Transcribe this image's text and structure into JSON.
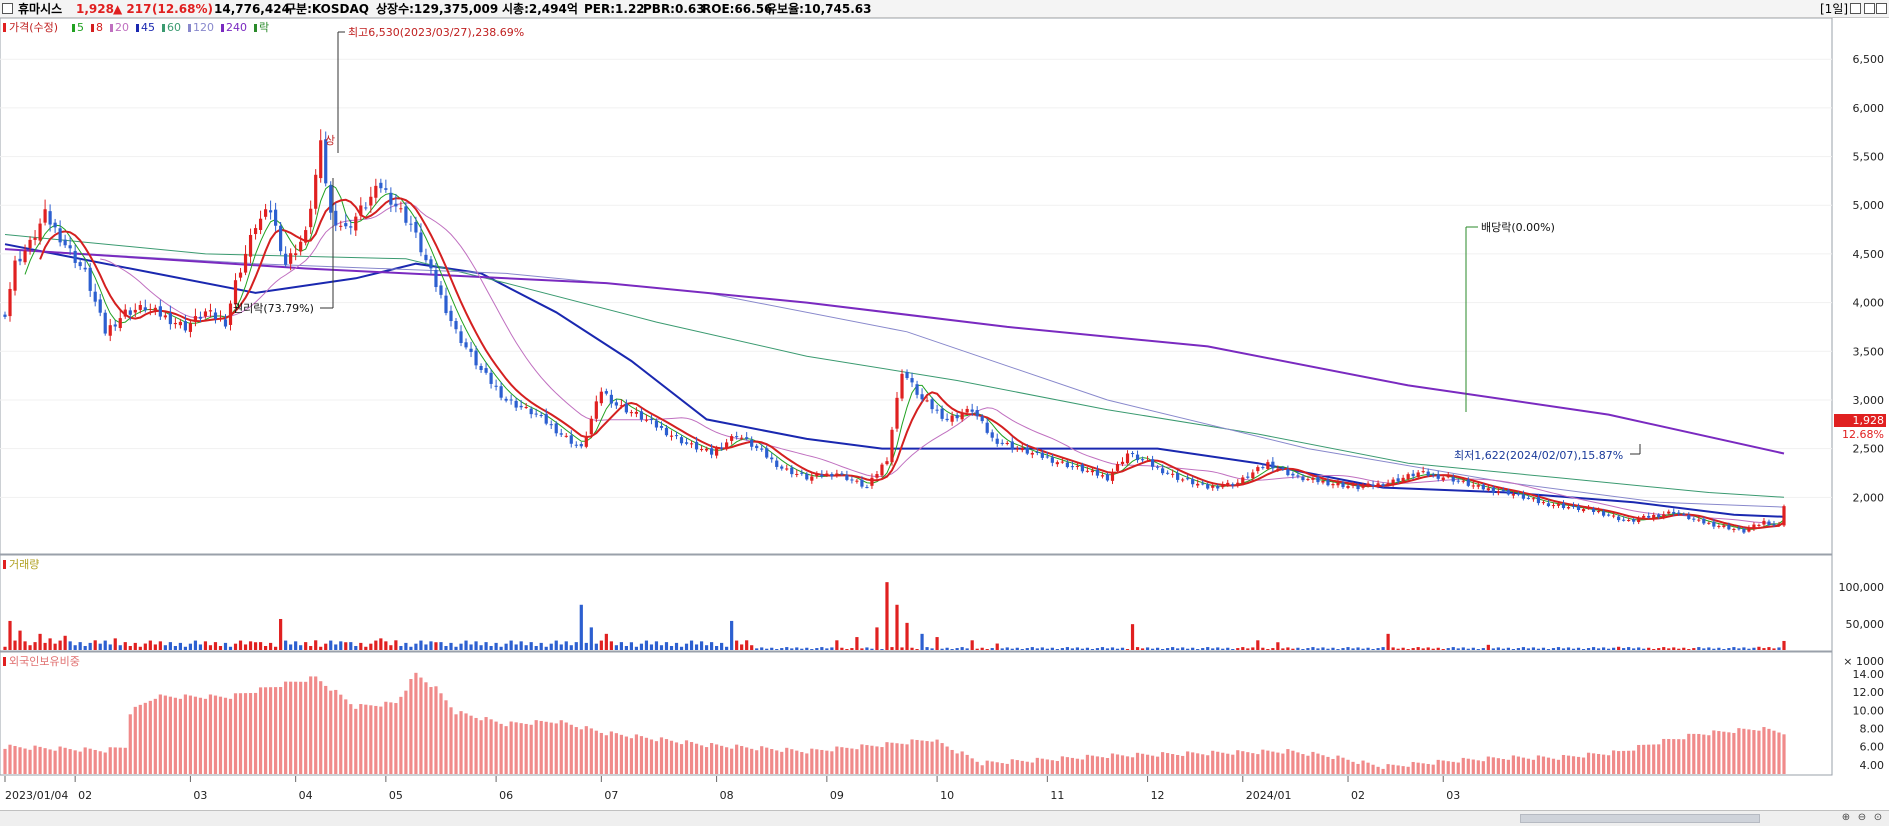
{
  "header": {
    "name": "휴마시스",
    "price": "1,928",
    "change": "▲ 217",
    "change_pct": "(12.68%)",
    "volume": "14,776,424",
    "market": "구분:KOSDAQ",
    "shares": "상장수:129,375,009",
    "mcap": "시총:2,494억",
    "per": "PER:1.22",
    "pbr": "PBR:0.63",
    "roe": "ROE:66.56",
    "float": "유보율:10,745.63",
    "period": "[1일]"
  },
  "legend": {
    "price": "가격(수정)",
    "ma": [
      {
        "label": "5",
        "color": "#21a121"
      },
      {
        "label": "8",
        "color": "#d42020"
      },
      {
        "label": "20",
        "color": "#c070c0"
      },
      {
        "label": "45",
        "color": "#1a28b0"
      },
      {
        "label": "60",
        "color": "#3a9a70"
      },
      {
        "label": "120",
        "color": "#8888cc"
      },
      {
        "label": "240",
        "color": "#7a2ac0"
      }
    ],
    "drop": "락"
  },
  "annotations": {
    "high": "최고6,530(2023/03/27),238.69%",
    "low": "최저1,622(2024/02/07),15.87%",
    "rights": "권리락(73.79%)",
    "dividend": "배당락(0.00%)",
    "limit_up": "상"
  },
  "price_axis": {
    "ticks": [
      "6,500",
      "6,000",
      "5,500",
      "5,000",
      "4,500",
      "4,000",
      "3,500",
      "3,000",
      "2,500",
      "2,000"
    ],
    "last_price": "1,928",
    "last_pct": "12.68%"
  },
  "volume_panel": {
    "title": "거래량",
    "ticks": [
      "100,000",
      "50,000"
    ],
    "unit": "× 1000"
  },
  "foreign_panel": {
    "title": "외국인보유비중",
    "ticks": [
      "14.00",
      "12.00",
      "10.00",
      "8.00",
      "6.00",
      "4.00"
    ]
  },
  "colors": {
    "up": "#e02020",
    "down": "#2c5fd0",
    "foreign": "#f08a8a"
  },
  "chart_data": [
    {
      "type": "candlestick",
      "title": "",
      "x_labels": [
        "2023/01/04",
        "02",
        "03",
        "04",
        "05",
        "06",
        "07",
        "08",
        "09",
        "10",
        "11",
        "12",
        "2024/01",
        "02",
        "03"
      ],
      "ylim": [
        1500,
        6800
      ],
      "anchors": [
        [
          0,
          3900,
          "u"
        ],
        [
          2,
          4400,
          "u"
        ],
        [
          5,
          4600,
          "u"
        ],
        [
          8,
          4900,
          "u"
        ],
        [
          12,
          4600,
          "d"
        ],
        [
          16,
          4300,
          "d"
        ],
        [
          20,
          3700,
          "d"
        ],
        [
          24,
          3900,
          "u"
        ],
        [
          28,
          3950,
          "u"
        ],
        [
          32,
          3850,
          "d"
        ],
        [
          36,
          3750,
          "d"
        ],
        [
          40,
          3900,
          "u"
        ],
        [
          44,
          3800,
          "d"
        ],
        [
          46,
          4200,
          "u"
        ],
        [
          50,
          4800,
          "u"
        ],
        [
          53,
          4950,
          "u"
        ],
        [
          56,
          4400,
          "d"
        ],
        [
          60,
          4700,
          "u"
        ],
        [
          63,
          5600,
          "u"
        ],
        [
          65,
          4900,
          "d"
        ],
        [
          68,
          4750,
          "d"
        ],
        [
          71,
          4950,
          "u"
        ],
        [
          75,
          5200,
          "u"
        ],
        [
          78,
          5000,
          "d"
        ],
        [
          81,
          4800,
          "d"
        ],
        [
          85,
          4300,
          "d"
        ],
        [
          90,
          3700,
          "d"
        ],
        [
          95,
          3300,
          "d"
        ],
        [
          100,
          3000,
          "d"
        ],
        [
          106,
          2850,
          "d"
        ],
        [
          111,
          2650,
          "d"
        ],
        [
          115,
          2500,
          "d"
        ],
        [
          119,
          3100,
          "u"
        ],
        [
          122,
          2950,
          "d"
        ],
        [
          126,
          2850,
          "d"
        ],
        [
          131,
          2700,
          "d"
        ],
        [
          136,
          2550,
          "d"
        ],
        [
          141,
          2450,
          "d"
        ],
        [
          146,
          2650,
          "u"
        ],
        [
          150,
          2500,
          "d"
        ],
        [
          155,
          2300,
          "d"
        ],
        [
          160,
          2200,
          "d"
        ],
        [
          166,
          2250,
          "u"
        ],
        [
          172,
          2100,
          "d"
        ],
        [
          176,
          2400,
          "u"
        ],
        [
          179,
          3300,
          "u"
        ],
        [
          183,
          3000,
          "d"
        ],
        [
          188,
          2800,
          "d"
        ],
        [
          193,
          2900,
          "u"
        ],
        [
          197,
          2600,
          "d"
        ],
        [
          202,
          2500,
          "d"
        ],
        [
          208,
          2400,
          "d"
        ],
        [
          214,
          2300,
          "d"
        ],
        [
          220,
          2200,
          "d"
        ],
        [
          224,
          2450,
          "u"
        ],
        [
          228,
          2350,
          "d"
        ],
        [
          234,
          2200,
          "d"
        ],
        [
          240,
          2100,
          "d"
        ],
        [
          246,
          2150,
          "u"
        ],
        [
          252,
          2350,
          "u"
        ],
        [
          258,
          2200,
          "d"
        ],
        [
          264,
          2150,
          "d"
        ],
        [
          270,
          2100,
          "d"
        ],
        [
          276,
          2150,
          "u"
        ],
        [
          282,
          2250,
          "u"
        ],
        [
          288,
          2200,
          "d"
        ],
        [
          294,
          2100,
          "d"
        ],
        [
          300,
          2050,
          "d"
        ],
        [
          306,
          1950,
          "d"
        ],
        [
          312,
          1900,
          "d"
        ],
        [
          318,
          1850,
          "d"
        ],
        [
          324,
          1750,
          "d"
        ],
        [
          328,
          1800,
          "u"
        ],
        [
          333,
          1850,
          "u"
        ],
        [
          338,
          1750,
          "d"
        ],
        [
          343,
          1700,
          "d"
        ],
        [
          347,
          1650,
          "d"
        ],
        [
          351,
          1750,
          "u"
        ],
        [
          354,
          1711,
          "d"
        ],
        [
          355,
          1928,
          "u"
        ]
      ],
      "ma_lines": [
        {
          "name": "45",
          "color": "#1a28b0",
          "points": [
            [
              0,
              4600
            ],
            [
              30,
              4300
            ],
            [
              50,
              4100
            ],
            [
              70,
              4250
            ],
            [
              82,
              4400
            ],
            [
              95,
              4300
            ],
            [
              110,
              3900
            ],
            [
              125,
              3400
            ],
            [
              140,
              2800
            ],
            [
              160,
              2600
            ],
            [
              175,
              2500
            ],
            [
              195,
              2500
            ],
            [
              215,
              2500
            ],
            [
              230,
              2500
            ],
            [
              250,
              2350
            ],
            [
              275,
              2100
            ],
            [
              300,
              2050
            ],
            [
              325,
              1950
            ],
            [
              345,
              1820
            ],
            [
              355,
              1800
            ]
          ]
        },
        {
          "name": "60",
          "color": "#3a9a70",
          "points": [
            [
              0,
              4700
            ],
            [
              40,
              4500
            ],
            [
              80,
              4450
            ],
            [
              100,
              4200
            ],
            [
              130,
              3800
            ],
            [
              160,
              3450
            ],
            [
              190,
              3200
            ],
            [
              220,
              2900
            ],
            [
              250,
              2650
            ],
            [
              280,
              2350
            ],
            [
              310,
              2200
            ],
            [
              340,
              2050
            ],
            [
              355,
              2000
            ]
          ]
        },
        {
          "name": "120",
          "color": "#8888cc",
          "points": [
            [
              0,
              4550
            ],
            [
              50,
              4400
            ],
            [
              100,
              4300
            ],
            [
              140,
              4100
            ],
            [
              180,
              3700
            ],
            [
              220,
              3000
            ],
            [
              260,
              2500
            ],
            [
              300,
              2150
            ],
            [
              330,
              1950
            ],
            [
              355,
              1900
            ]
          ]
        },
        {
          "name": "240",
          "color": "#7a2ac0",
          "points": [
            [
              0,
              4550
            ],
            [
              60,
              4350
            ],
            [
              120,
              4200
            ],
            [
              160,
              4000
            ],
            [
              200,
              3750
            ],
            [
              240,
              3550
            ],
            [
              280,
              3150
            ],
            [
              320,
              2850
            ],
            [
              355,
              2450
            ]
          ]
        }
      ]
    },
    {
      "type": "bar",
      "title": "거래량",
      "ylim": [
        0,
        130000
      ],
      "spikes": [
        [
          1,
          45000
        ],
        [
          3,
          30000
        ],
        [
          7,
          25000
        ],
        [
          9,
          18000
        ],
        [
          12,
          22000
        ],
        [
          18,
          15000
        ],
        [
          22,
          18000
        ],
        [
          28,
          10000
        ],
        [
          50,
          12000
        ],
        [
          55,
          48000
        ],
        [
          62,
          15000
        ],
        [
          68,
          12000
        ],
        [
          75,
          18000
        ],
        [
          78,
          15000
        ],
        [
          86,
          12000
        ],
        [
          115,
          70000
        ],
        [
          117,
          35000
        ],
        [
          120,
          25000
        ],
        [
          125,
          12000
        ],
        [
          145,
          45000
        ],
        [
          148,
          15000
        ],
        [
          166,
          15000
        ],
        [
          170,
          20000
        ],
        [
          174,
          35000
        ],
        [
          176,
          105000
        ],
        [
          178,
          70000
        ],
        [
          180,
          42000
        ],
        [
          183,
          25000
        ],
        [
          186,
          20000
        ],
        [
          193,
          15000
        ],
        [
          198,
          10000
        ],
        [
          225,
          40000
        ],
        [
          250,
          15000
        ],
        [
          254,
          12000
        ],
        [
          276,
          25000
        ],
        [
          296,
          8000
        ],
        [
          322,
          5000
        ],
        [
          350,
          5000
        ],
        [
          355,
          14000
        ]
      ]
    },
    {
      "type": "bar",
      "title": "외국인보유비중",
      "ylim": [
        3,
        15.2
      ],
      "anchors": [
        [
          0,
          6.0
        ],
        [
          20,
          5.6
        ],
        [
          24,
          6.0
        ],
        [
          25,
          9.8
        ],
        [
          30,
          11.5
        ],
        [
          45,
          11.5
        ],
        [
          55,
          12.8
        ],
        [
          62,
          13.6
        ],
        [
          66,
          12.0
        ],
        [
          70,
          10.4
        ],
        [
          78,
          10.8
        ],
        [
          82,
          14.0
        ],
        [
          86,
          12.4
        ],
        [
          90,
          9.8
        ],
        [
          100,
          8.5
        ],
        [
          110,
          8.8
        ],
        [
          120,
          7.5
        ],
        [
          140,
          6.2
        ],
        [
          160,
          5.5
        ],
        [
          175,
          6.2
        ],
        [
          185,
          6.8
        ],
        [
          195,
          4.2
        ],
        [
          205,
          4.5
        ],
        [
          220,
          5.0
        ],
        [
          240,
          5.3
        ],
        [
          256,
          5.5
        ],
        [
          264,
          5.0
        ],
        [
          275,
          3.8
        ],
        [
          290,
          4.5
        ],
        [
          300,
          4.8
        ],
        [
          310,
          4.8
        ],
        [
          322,
          5.4
        ],
        [
          330,
          6.5
        ],
        [
          338,
          7.4
        ],
        [
          350,
          8.0
        ],
        [
          355,
          7.6
        ]
      ]
    }
  ]
}
